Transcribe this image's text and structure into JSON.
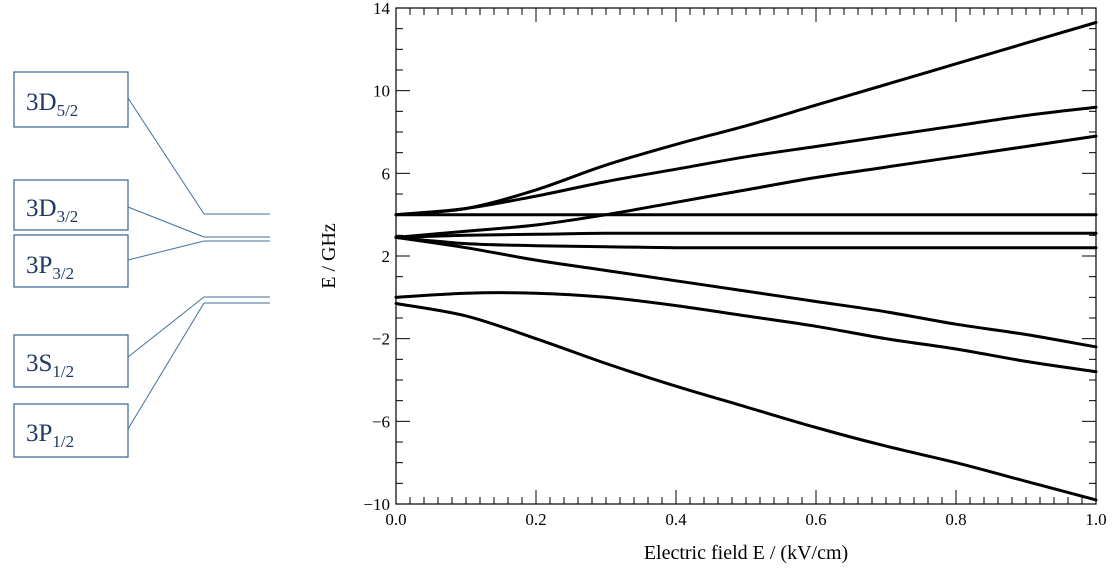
{
  "levels": [
    {
      "base": "3D",
      "sub": "5/2"
    },
    {
      "base": "3D",
      "sub": "3/2"
    },
    {
      "base": "3P",
      "sub": "3/2"
    },
    {
      "base": "3S",
      "sub": "1/2"
    },
    {
      "base": "3P",
      "sub": "1/2"
    }
  ],
  "chart_data": {
    "type": "line",
    "title": "",
    "xlabel": "Electric field E / (kV/cm)",
    "ylabel": "E / GHz",
    "xlim": [
      0.0,
      1.0
    ],
    "ylim": [
      -10,
      14
    ],
    "x_ticks": [
      "0.0",
      "0.2",
      "0.4",
      "0.6",
      "0.8",
      "1.0"
    ],
    "y_ticks": [
      "−10",
      "−6",
      "−2",
      "2",
      "6",
      "10",
      "14"
    ],
    "x_tick_values": [
      0,
      0.2,
      0.4,
      0.6,
      0.8,
      1.0
    ],
    "y_tick_values": [
      -10,
      -6,
      -2,
      2,
      6,
      10,
      14
    ],
    "grid": false,
    "x": [
      0,
      0.1,
      0.2,
      0.3,
      0.4,
      0.5,
      0.6,
      0.7,
      0.8,
      0.9,
      1.0
    ],
    "series": [
      {
        "values": [
          4.0,
          4.3,
          5.2,
          6.4,
          7.4,
          8.3,
          9.3,
          10.3,
          11.3,
          12.3,
          13.3
        ]
      },
      {
        "values": [
          4.0,
          4.3,
          4.9,
          5.6,
          6.2,
          6.8,
          7.3,
          7.8,
          8.3,
          8.8,
          9.2
        ]
      },
      {
        "values": [
          2.9,
          3.2,
          3.5,
          4.0,
          4.6,
          5.2,
          5.8,
          6.3,
          6.8,
          7.3,
          7.8
        ]
      },
      {
        "values": [
          4.0,
          4.0,
          4.0,
          4.0,
          4.0,
          4.0,
          4.0,
          4.0,
          4.0,
          4.0,
          4.0
        ]
      },
      {
        "values": [
          2.9,
          3.0,
          3.05,
          3.1,
          3.1,
          3.1,
          3.1,
          3.1,
          3.1,
          3.1,
          3.1
        ]
      },
      {
        "values": [
          2.9,
          2.6,
          2.5,
          2.45,
          2.4,
          2.4,
          2.4,
          2.4,
          2.4,
          2.4,
          2.4
        ]
      },
      {
        "values": [
          2.9,
          2.4,
          1.8,
          1.3,
          0.8,
          0.3,
          -0.2,
          -0.7,
          -1.3,
          -1.8,
          -2.4
        ]
      },
      {
        "values": [
          0.0,
          0.2,
          0.2,
          0.0,
          -0.4,
          -0.9,
          -1.4,
          -2.0,
          -2.5,
          -3.1,
          -3.6
        ]
      },
      {
        "values": [
          -0.3,
          -0.9,
          -2.0,
          -3.2,
          -4.3,
          -5.3,
          -6.3,
          -7.2,
          -8.0,
          -8.9,
          -9.8
        ]
      }
    ]
  }
}
